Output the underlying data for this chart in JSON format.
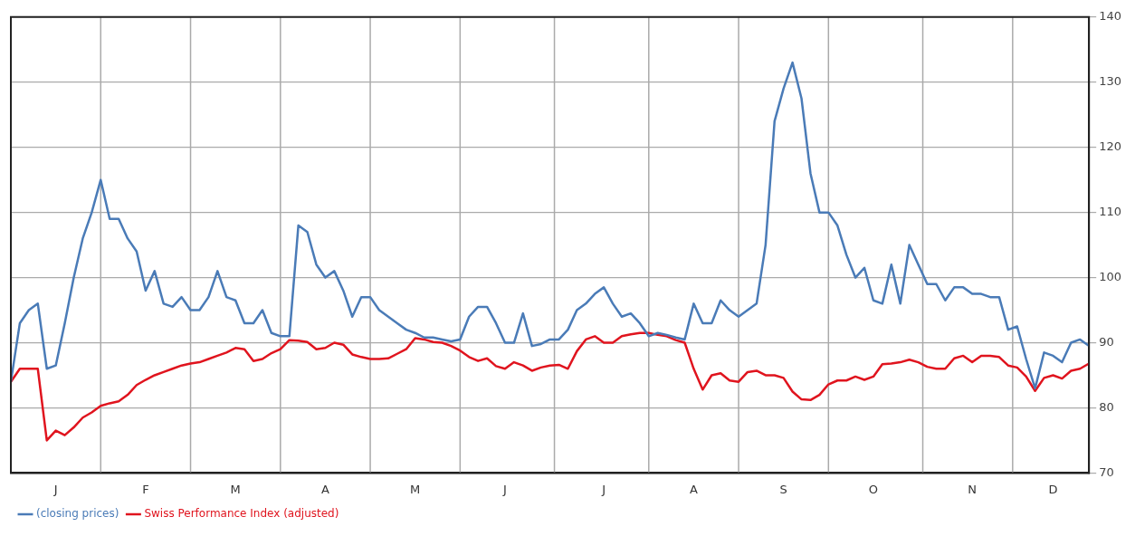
{
  "chart_data": {
    "type": "line",
    "categories": [
      null,
      null,
      null,
      null,
      null,
      "J",
      null,
      null,
      null,
      null,
      null,
      null,
      null,
      null,
      null,
      "F",
      null,
      null,
      null,
      null,
      null,
      null,
      null,
      null,
      null,
      "M",
      null,
      null,
      null,
      null,
      null,
      null,
      null,
      null,
      null,
      "A",
      null,
      null,
      null,
      null,
      null,
      null,
      null,
      null,
      null,
      "M",
      null,
      null,
      null,
      null,
      null,
      null,
      null,
      null,
      null,
      "J",
      null,
      null,
      null,
      null,
      null,
      null,
      null,
      null,
      null,
      null,
      "J",
      null,
      null,
      null,
      null,
      null,
      null,
      null,
      null,
      null,
      "A",
      null,
      null,
      null,
      null,
      null,
      null,
      null,
      null,
      null,
      "S",
      null,
      null,
      null,
      null,
      null,
      null,
      null,
      null,
      null,
      "O",
      null,
      null,
      null,
      null,
      null,
      null,
      null,
      null,
      null,
      null,
      "N",
      null,
      null,
      null,
      null,
      null,
      null,
      null,
      null,
      "D",
      null,
      null,
      null,
      null
    ],
    "ylim": [
      70,
      140
    ],
    "yticks": [
      70,
      80,
      90,
      100,
      110,
      120,
      130,
      140
    ],
    "grid": true,
    "legend": "bottom left",
    "marker": "none",
    "line_style": "solid",
    "series": [
      {
        "name": "(closing prices)",
        "color": "#4a7bb7",
        "values": [
          84,
          93,
          95,
          96,
          86,
          86.5,
          93,
          100,
          106,
          110,
          115,
          109,
          109,
          106,
          104,
          98,
          101,
          96,
          95.5,
          97,
          95,
          95,
          97,
          101,
          97,
          96.5,
          93,
          93,
          95,
          91.5,
          91,
          91,
          108,
          107,
          102,
          100,
          101,
          98,
          94,
          97,
          97,
          95,
          94,
          93,
          92,
          91.5,
          90.8,
          90.8,
          90.5,
          90.2,
          90.5,
          94,
          95.5,
          95.5,
          93,
          90,
          90,
          94.5,
          89.5,
          89.8,
          90.5,
          90.5,
          92,
          95,
          96,
          97.5,
          98.5,
          96,
          94,
          94.5,
          93,
          91,
          91.5,
          91.2,
          90.8,
          90.5,
          96,
          93,
          93,
          96.5,
          95,
          94,
          95,
          96,
          105,
          124,
          129,
          133,
          127.5,
          116,
          110,
          110,
          108,
          103.5,
          100,
          101.5,
          96.5,
          96,
          102,
          96,
          105,
          102,
          99,
          99,
          96.5,
          98.5,
          98.5,
          97.5,
          97.5,
          97,
          97,
          92,
          92.5,
          87.5,
          83,
          88.5,
          88,
          87,
          90,
          90.5,
          89.5
        ]
      },
      {
        "name": "Swiss Performance Index (adjusted)",
        "color": "#e0141e",
        "values": [
          84,
          86,
          86,
          86,
          75,
          76.5,
          75.8,
          77,
          78.5,
          79.3,
          80.3,
          80.7,
          81,
          82,
          83.5,
          84.3,
          85,
          85.5,
          86,
          86.5,
          86.8,
          87,
          87.5,
          88,
          88.5,
          89.2,
          89,
          87.2,
          87.5,
          88.4,
          89,
          90.4,
          90.3,
          90.1,
          89,
          89.2,
          90,
          89.7,
          88.2,
          87.8,
          87.5,
          87.5,
          87.6,
          88.3,
          89,
          90.7,
          90.5,
          90.1,
          90,
          89.5,
          88.8,
          87.8,
          87.2,
          87.6,
          86.4,
          86,
          87,
          86.5,
          85.7,
          86.2,
          86.5,
          86.6,
          86,
          88.7,
          90.5,
          91,
          90,
          90,
          91,
          91.3,
          91.5,
          91.5,
          91.2,
          91,
          90.4,
          90,
          86,
          82.8,
          85,
          85.3,
          84.2,
          84,
          85.5,
          85.7,
          85,
          85,
          84.6,
          82.5,
          81.3,
          81.2,
          82,
          83.6,
          84.2,
          84.2,
          84.8,
          84.3,
          84.8,
          86.7,
          86.8,
          87,
          87.4,
          87,
          86.3,
          86,
          86,
          87.6,
          88,
          87,
          88,
          88,
          87.8,
          86.5,
          86.2,
          84.8,
          82.6,
          84.6,
          85,
          84.5,
          85.7,
          86,
          86.8
        ]
      }
    ]
  }
}
